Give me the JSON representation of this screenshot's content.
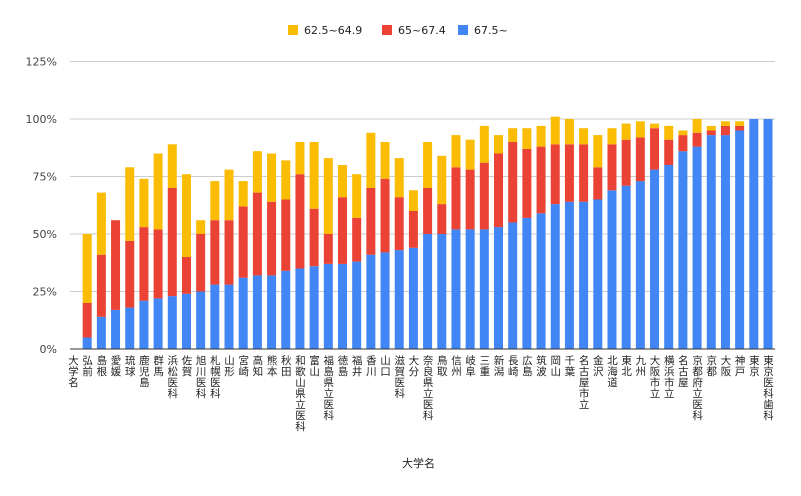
{
  "chart_data": {
    "type": "bar",
    "stacked": true,
    "title": "",
    "xlabel": "大学名",
    "ylabel": "",
    "ylim": [
      0,
      125
    ],
    "yticks": [
      "0%",
      "25%",
      "50%",
      "75%",
      "100%",
      "125%"
    ],
    "ytick_values": [
      0,
      25,
      50,
      75,
      100,
      125
    ],
    "grid": true,
    "legend_position": "top",
    "categories": [
      "大学名",
      "弘前",
      "島根",
      "愛媛",
      "琉球",
      "鹿児島",
      "群馬",
      "浜松医科",
      "佐賀",
      "旭川医科",
      "札幌医科",
      "山形",
      "宮崎",
      "高知",
      "熊本",
      "秋田",
      "和歌山県立医科",
      "富山",
      "福島県立医科",
      "徳島",
      "福井",
      "香川",
      "山口",
      "滋賀医科",
      "大分",
      "奈良県立医科",
      "鳥取",
      "信州",
      "岐阜",
      "三重",
      "新潟",
      "長崎",
      "広島",
      "筑波",
      "岡山",
      "千葉",
      "名古屋市立",
      "金沢",
      "北海道",
      "東北",
      "九州",
      "大阪市立",
      "横浜市立",
      "名古屋",
      "京都府立医科",
      "京都",
      "大阪",
      "神戸",
      "東京",
      "東京医科歯科"
    ],
    "series": [
      {
        "name": "67.5~",
        "color": "#4285F4",
        "values": [
          0,
          5,
          14,
          17,
          18,
          21,
          22,
          23,
          24,
          25,
          28,
          28,
          31,
          32,
          32,
          34,
          35,
          36,
          37,
          37,
          38,
          41,
          42,
          43,
          44,
          50,
          50,
          52,
          52,
          52,
          53,
          55,
          57,
          59,
          63,
          64,
          64,
          65,
          69,
          71,
          73,
          78,
          80,
          86,
          88,
          93,
          93,
          95,
          100,
          100
        ]
      },
      {
        "name": "65~67.4",
        "color": "#EA4335",
        "values": [
          0,
          15,
          27,
          39,
          29,
          32,
          30,
          47,
          16,
          25,
          28,
          28,
          31,
          36,
          32,
          31,
          41,
          25,
          13,
          29,
          19,
          29,
          32,
          23,
          16,
          20,
          13,
          27,
          26,
          29,
          32,
          35,
          30,
          29,
          26,
          25,
          25,
          14,
          20,
          20,
          19,
          18,
          11,
          7,
          6,
          2,
          4,
          2,
          0,
          0
        ]
      },
      {
        "name": "62.5~64.9",
        "color": "#FBBC04",
        "values": [
          0,
          30,
          27,
          0,
          32,
          21,
          33,
          19,
          36,
          6,
          17,
          22,
          11,
          18,
          21,
          17,
          14,
          29,
          33,
          14,
          19,
          24,
          16,
          17,
          9,
          20,
          21,
          14,
          13,
          16,
          8,
          6,
          9,
          9,
          12,
          11,
          7,
          14,
          7,
          7,
          7,
          2,
          6,
          2,
          6,
          2,
          2,
          2,
          0,
          0
        ]
      }
    ],
    "legend_order": [
      "62.5~64.9",
      "65~67.4",
      "67.5~"
    ]
  }
}
